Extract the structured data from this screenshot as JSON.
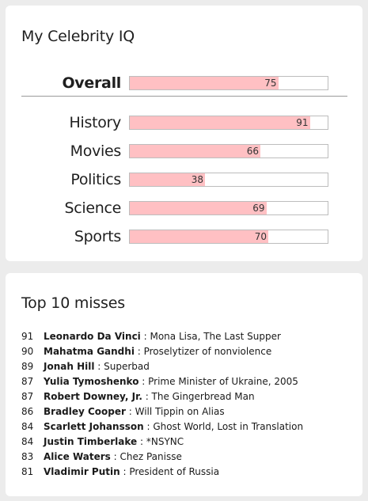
{
  "iq_card": {
    "title": "My Celebrity IQ",
    "overall": {
      "label": "Overall",
      "score": 75
    },
    "categories": [
      {
        "label": "History",
        "score": 91
      },
      {
        "label": "Movies",
        "score": 66
      },
      {
        "label": "Politics",
        "score": 38
      },
      {
        "label": "Science",
        "score": 69
      },
      {
        "label": "Sports",
        "score": 70
      }
    ],
    "bar_fill_color": "#ffc0c3"
  },
  "misses_card": {
    "title": "Top 10 misses",
    "separator": " : ",
    "items": [
      {
        "score": "91",
        "name": "Leonardo Da Vinci",
        "detail": "Mona Lisa, The Last Supper"
      },
      {
        "score": "90",
        "name": "Mahatma Gandhi",
        "detail": "Proselytizer of nonviolence"
      },
      {
        "score": "89",
        "name": "Jonah Hill",
        "detail": "Superbad"
      },
      {
        "score": "87",
        "name": "Yulia Tymoshenko",
        "detail": "Prime Minister of Ukraine, 2005"
      },
      {
        "score": "87",
        "name": "Robert Downey, Jr.",
        "detail": "The Gingerbread Man"
      },
      {
        "score": "86",
        "name": "Bradley Cooper",
        "detail": "Will Tippin on Alias"
      },
      {
        "score": "84",
        "name": "Scarlett Johansson",
        "detail": "Ghost World, Lost in Translation"
      },
      {
        "score": "84",
        "name": "Justin Timberlake",
        "detail": "*NSYNC"
      },
      {
        "score": "83",
        "name": "Alice Waters",
        "detail": "Chez Panisse"
      },
      {
        "score": "81",
        "name": "Vladimir Putin",
        "detail": "President of Russia"
      }
    ]
  }
}
